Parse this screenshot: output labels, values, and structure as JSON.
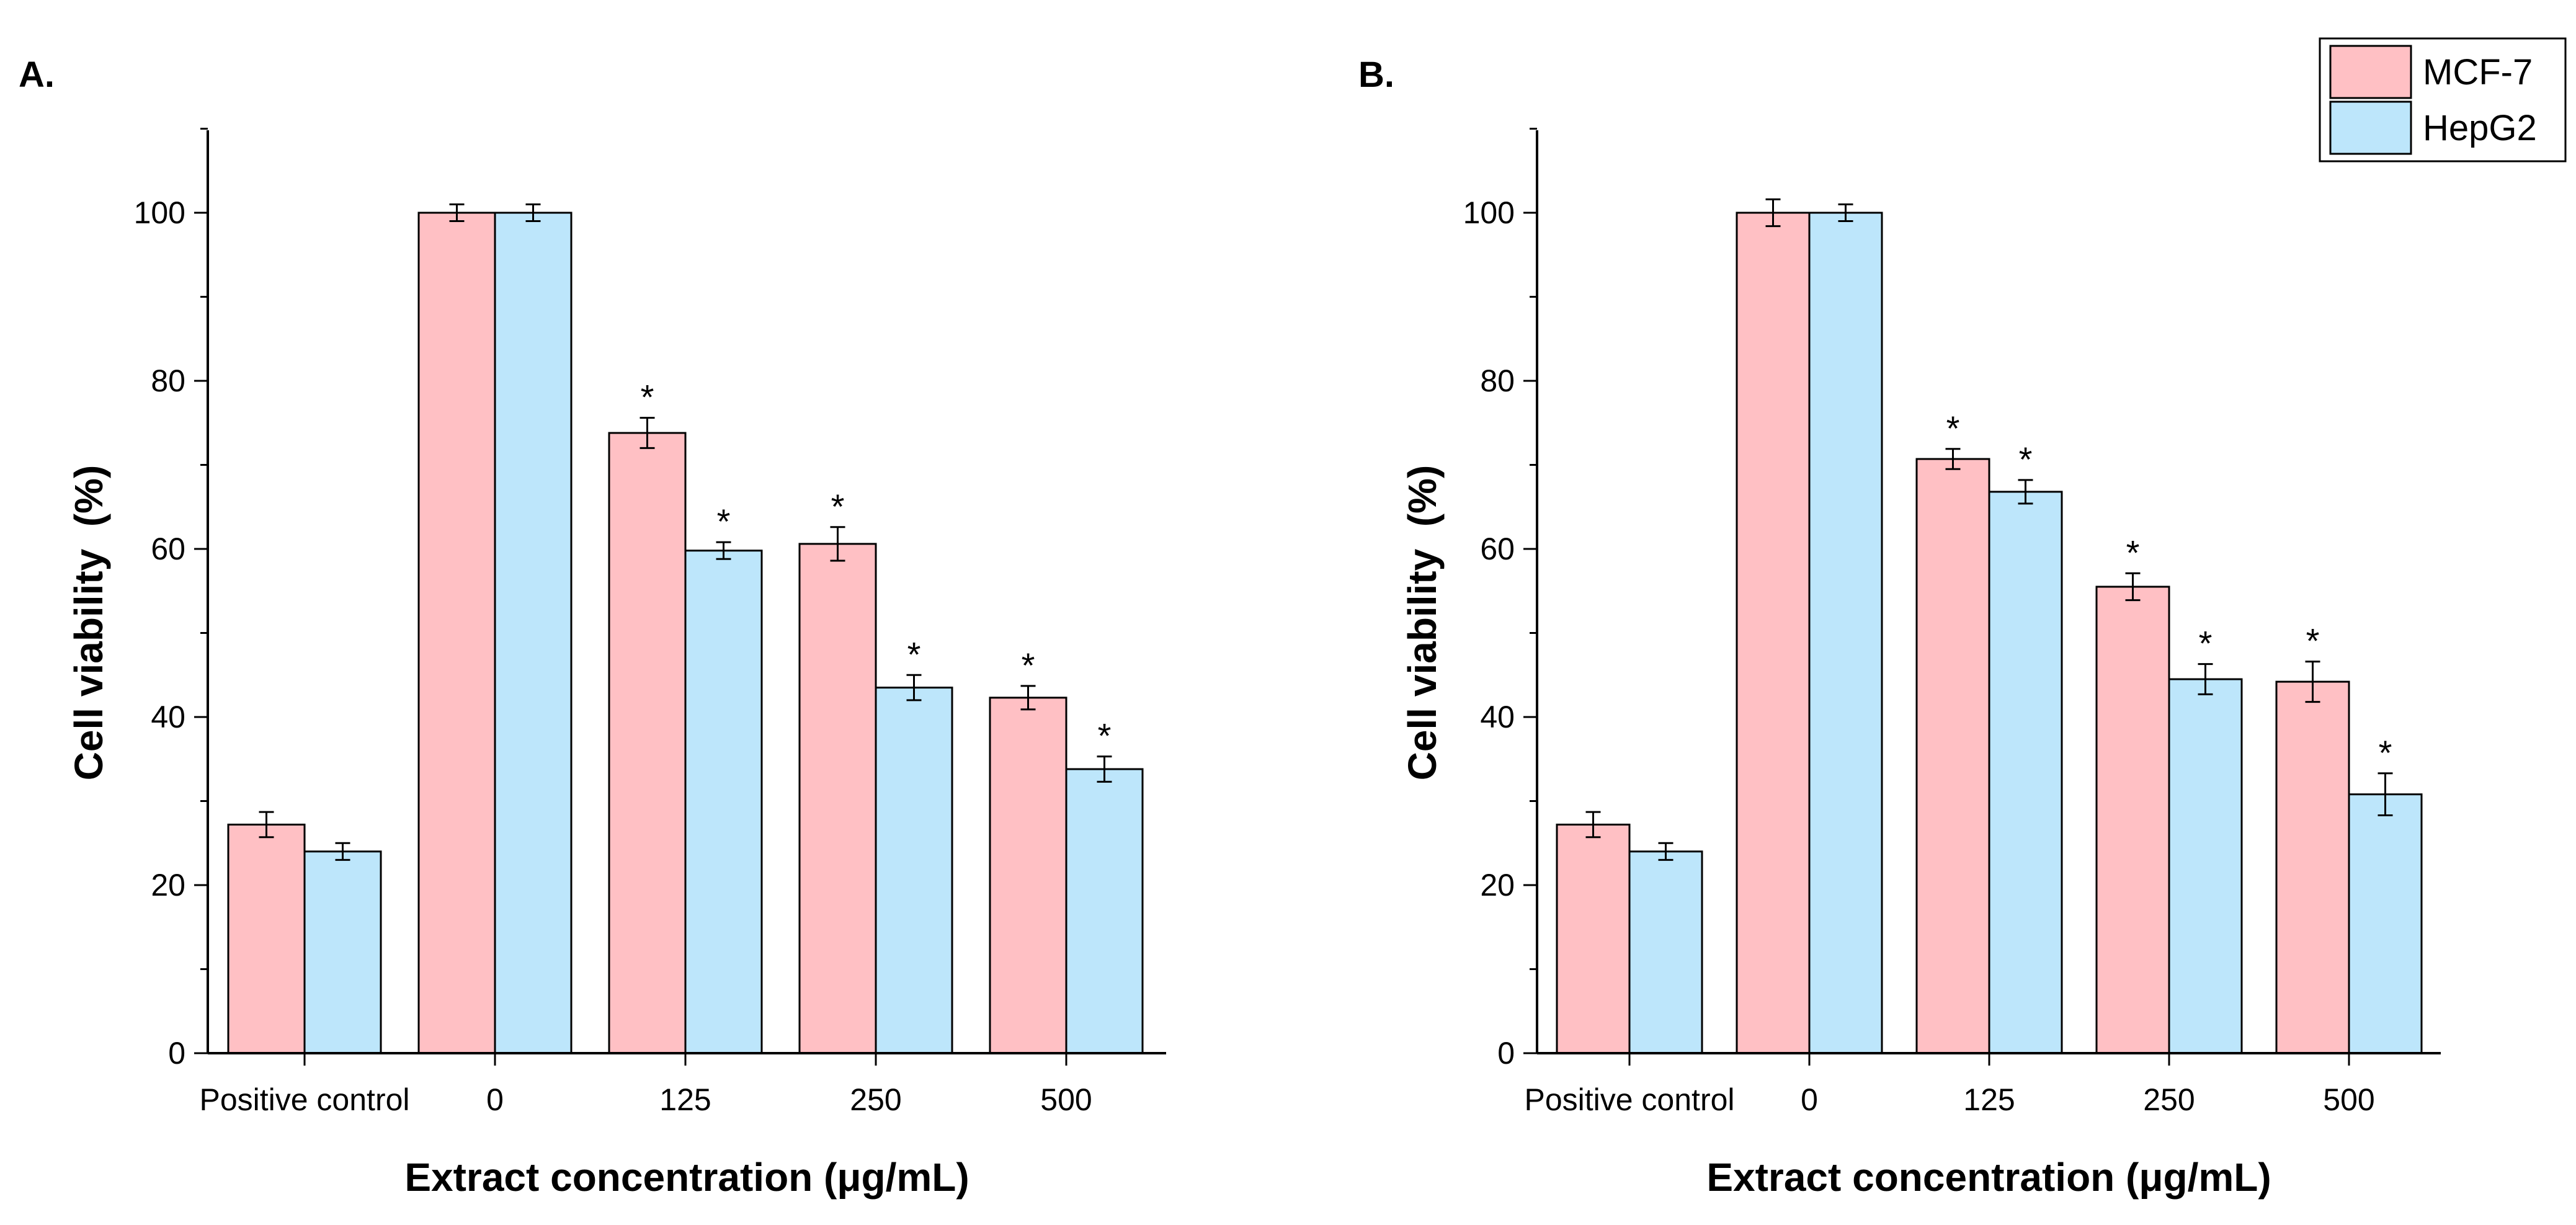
{
  "colors": {
    "mcf7": "#ffc0c4",
    "hepg2": "#bde6fb",
    "stroke": "#000000"
  },
  "chart_data": [
    {
      "type": "bar",
      "panel_label": "A.",
      "title": "",
      "xlabel": "Extract concentration (μg/mL)",
      "ylabel": "Cell viability  (%)",
      "ylim": [
        0,
        110
      ],
      "yticks": [
        "0",
        "20",
        "40",
        "60",
        "80",
        "100"
      ],
      "categories": [
        "Positive control",
        "0",
        "125",
        "250",
        "500"
      ],
      "series": [
        {
          "name": "MCF-7",
          "values": [
            27.2,
            100,
            73.8,
            60.6,
            42.3
          ],
          "errors": [
            1.5,
            1.0,
            1.8,
            2.0,
            1.4
          ],
          "significant": [
            false,
            false,
            true,
            true,
            true
          ]
        },
        {
          "name": "HepG2",
          "values": [
            24.0,
            100,
            59.8,
            43.5,
            33.8
          ],
          "errors": [
            1.0,
            1.0,
            1.0,
            1.5,
            1.5
          ],
          "significant": [
            false,
            false,
            true,
            true,
            true
          ]
        }
      ]
    },
    {
      "type": "bar",
      "panel_label": "B.",
      "title": "",
      "xlabel": "Extract concentration (μg/mL)",
      "ylabel": "Cell viability  (%)",
      "ylim": [
        0,
        110
      ],
      "yticks": [
        "0",
        "20",
        "40",
        "60",
        "80",
        "100"
      ],
      "categories": [
        "Positive control",
        "0",
        "125",
        "250",
        "500"
      ],
      "series": [
        {
          "name": "MCF-7",
          "values": [
            27.2,
            100,
            70.7,
            55.5,
            44.2
          ],
          "errors": [
            1.5,
            1.6,
            1.2,
            1.6,
            2.4
          ],
          "significant": [
            false,
            false,
            true,
            true,
            true
          ]
        },
        {
          "name": "HepG2",
          "values": [
            24.0,
            100,
            66.8,
            44.5,
            30.8
          ],
          "errors": [
            1.0,
            1.0,
            1.4,
            1.8,
            2.5
          ],
          "significant": [
            false,
            false,
            true,
            true,
            true
          ]
        }
      ]
    }
  ],
  "significance_marker": "*",
  "legend": {
    "placement": "top-right",
    "entries": [
      "MCF-7",
      "HepG2"
    ]
  }
}
